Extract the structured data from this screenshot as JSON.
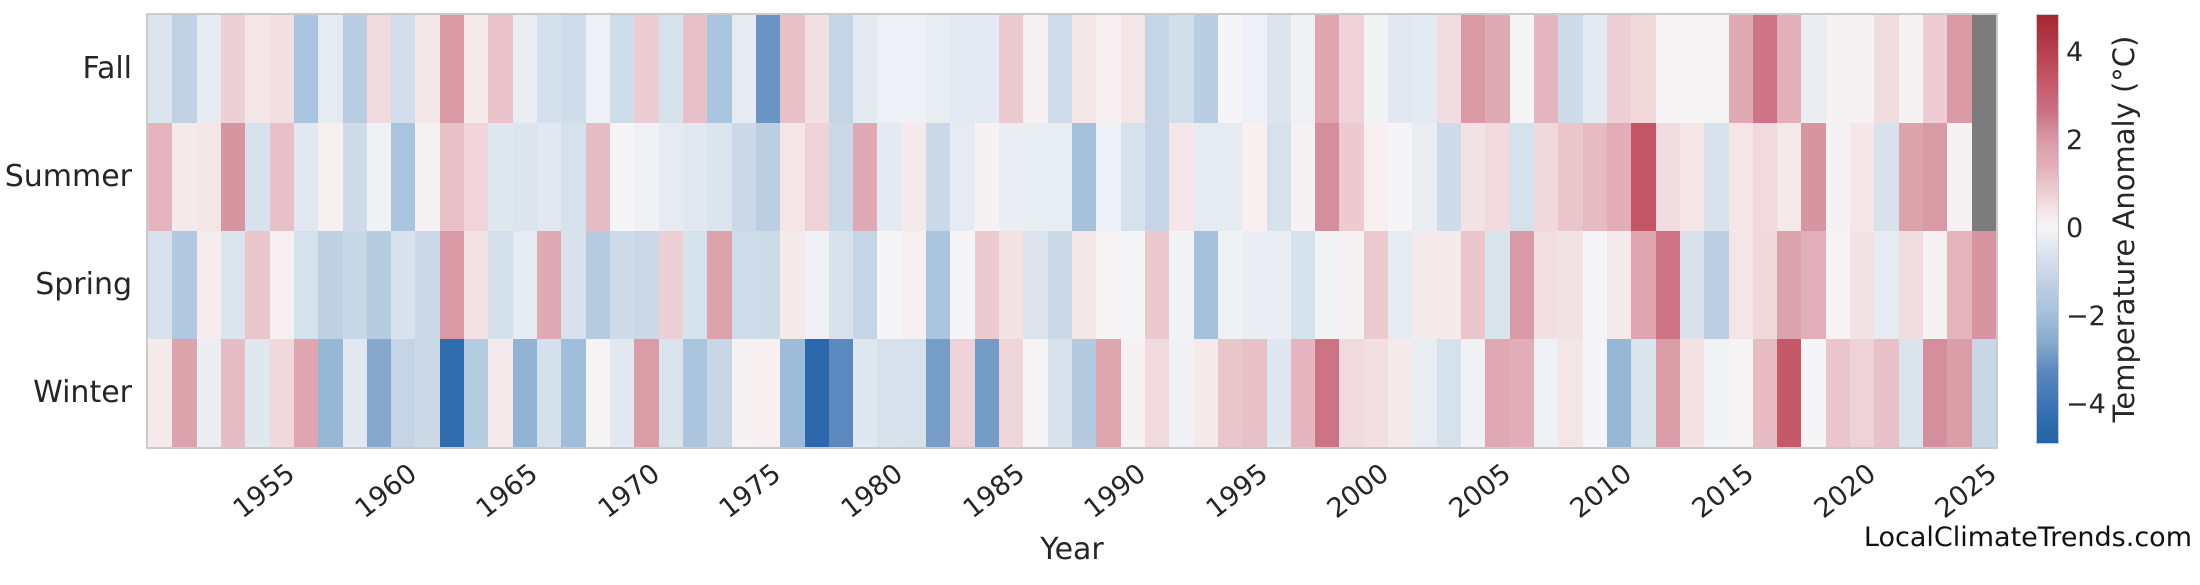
{
  "watermark": {
    "text": "LocalClimateTrends.com"
  },
  "chart_data": {
    "type": "heatmap",
    "title": "",
    "xlabel": "Year",
    "ylabel": "",
    "colorbar_label": "Temperature Anomaly (°C)",
    "colorbar_tick_values": [
      4,
      2,
      0,
      -2,
      -4
    ],
    "colorbar_tick_labels": [
      "4",
      "2",
      "0",
      "−2",
      "−4"
    ],
    "vmin": -4.85,
    "vmax": 4.85,
    "grid": false,
    "legend_position": "right-colorbar",
    "year_start": 1950,
    "year_end": 2025,
    "x_tick_labels": [
      "1955",
      "1960",
      "1965",
      "1970",
      "1975",
      "1980",
      "1985",
      "1990",
      "1995",
      "2000",
      "2005",
      "2010",
      "2015",
      "2020",
      "2025"
    ],
    "x_tick_years": [
      1955,
      1960,
      1965,
      1970,
      1975,
      1980,
      1985,
      1990,
      1995,
      2000,
      2005,
      2010,
      2015,
      2020,
      2025
    ],
    "rows": [
      "Fall",
      "Summer",
      "Spring",
      "Winter"
    ],
    "missing_value_color": "#7c7c7c",
    "colormap_stops": [
      [
        -4.85,
        "#2563a8"
      ],
      [
        -4.3,
        "#2f6daf"
      ],
      [
        -3.2,
        "#5b89bf"
      ],
      [
        -2.6,
        "#84a9cd"
      ],
      [
        -2.2,
        "#97b7d6"
      ],
      [
        -1.8,
        "#a9c4de"
      ],
      [
        -1.3,
        "#bccfe2"
      ],
      [
        -0.95,
        "#ccdae8"
      ],
      [
        -0.6,
        "#d7e2ec"
      ],
      [
        -0.4,
        "#e1e8f0"
      ],
      [
        -0.2,
        "#eaeef3"
      ],
      [
        0,
        "#f5f4f6"
      ],
      [
        0.2,
        "#f7eff0"
      ],
      [
        0.45,
        "#f3e2e4"
      ],
      [
        0.7,
        "#efd5d9"
      ],
      [
        1.0,
        "#eac5cc"
      ],
      [
        1.4,
        "#e3b0ba"
      ],
      [
        1.8,
        "#dda3ad"
      ],
      [
        2.1,
        "#d795a1"
      ],
      [
        2.6,
        "#cc7486"
      ],
      [
        3.4,
        "#c45565"
      ],
      [
        4.2,
        "#b23a49"
      ],
      [
        4.85,
        "#a82634"
      ]
    ],
    "series": [
      {
        "name": "Fall",
        "values": [
          -0.5,
          -1.2,
          -0.3,
          0.8,
          0.4,
          0.5,
          -1.8,
          -0.3,
          -1.4,
          0.6,
          -0.8,
          0.4,
          2.0,
          0.3,
          1.05,
          -0.25,
          -0.7,
          -0.85,
          -0.15,
          -0.85,
          0.85,
          -0.65,
          1.1,
          -1.8,
          -0.3,
          -3.0,
          1.1,
          0.5,
          -1.1,
          -0.35,
          -0.15,
          -0.15,
          -0.25,
          -0.35,
          -0.35,
          0.9,
          0.1,
          -0.85,
          0.4,
          0.15,
          0.4,
          -1.1,
          -0.75,
          -1.4,
          0.0,
          -0.15,
          -0.5,
          -0.1,
          1.7,
          0.75,
          -0.05,
          -0.4,
          -0.35,
          0.55,
          2.0,
          1.6,
          0.0,
          1.3,
          -0.9,
          -0.35,
          0.8,
          0.65,
          0.05,
          0.05,
          0.05,
          1.6,
          2.6,
          1.4,
          -0.2,
          0.1,
          0.1,
          0.55,
          0.1,
          0.85,
          2.0,
          null
        ]
      },
      {
        "name": "Summer",
        "values": [
          1.3,
          0.3,
          0.4,
          2.1,
          -0.6,
          1.1,
          -0.4,
          0.2,
          -0.9,
          -0.1,
          -1.8,
          0.15,
          1.1,
          0.7,
          -0.45,
          -0.5,
          -0.4,
          -0.65,
          1.15,
          0.0,
          -0.1,
          -0.3,
          -0.4,
          -0.5,
          -1.0,
          -1.3,
          0.4,
          0.75,
          -1.0,
          1.6,
          -0.35,
          0.3,
          -1.0,
          -0.3,
          0.1,
          -0.2,
          -0.25,
          -0.25,
          -1.9,
          -0.15,
          -0.65,
          -1.1,
          0.35,
          -0.3,
          -0.3,
          0.2,
          -0.65,
          0.1,
          2.2,
          0.9,
          0.2,
          0.0,
          -0.2,
          -0.9,
          0.45,
          0.6,
          -0.65,
          0.65,
          1.0,
          1.2,
          1.5,
          3.4,
          0.55,
          0.4,
          -0.6,
          0.4,
          0.6,
          0.3,
          2.1,
          0.1,
          0.35,
          -0.6,
          1.8,
          2.0,
          0.1,
          null
        ]
      },
      {
        "name": "Spring",
        "values": [
          -0.6,
          -1.6,
          0.25,
          -0.5,
          1.0,
          0.15,
          -0.65,
          -1.25,
          -1.05,
          -1.45,
          -0.6,
          -1.0,
          2.0,
          0.45,
          -0.7,
          -0.3,
          1.6,
          -0.6,
          -1.5,
          -0.9,
          -1.0,
          0.8,
          -0.65,
          1.8,
          -0.85,
          -0.9,
          0.3,
          -0.1,
          -0.6,
          -1.1,
          0.0,
          0.15,
          -1.75,
          0.0,
          0.9,
          0.45,
          -0.5,
          -0.95,
          0.4,
          0.05,
          0.0,
          0.95,
          -0.05,
          -1.9,
          -0.1,
          -0.2,
          -0.2,
          -0.65,
          -0.05,
          0.1,
          0.9,
          -0.3,
          0.3,
          0.3,
          1.0,
          -0.55,
          2.0,
          0.5,
          0.45,
          0.0,
          0.3,
          1.7,
          2.6,
          -0.6,
          -1.3,
          0.4,
          0.65,
          1.8,
          1.45,
          0.05,
          0.45,
          -0.3,
          0.55,
          0.1,
          1.35,
          2.1
        ]
      },
      {
        "name": "Winter",
        "values": [
          0.3,
          1.8,
          -0.2,
          1.15,
          -0.45,
          0.65,
          1.7,
          -2.2,
          -0.4,
          -2.6,
          -1.1,
          -0.95,
          -4.3,
          -1.45,
          0.3,
          -2.3,
          -0.7,
          -2.0,
          0.05,
          -0.4,
          1.95,
          -0.55,
          -1.75,
          -1.05,
          0.1,
          0.2,
          -2.05,
          -4.5,
          -3.2,
          -0.45,
          -0.6,
          -0.65,
          -2.8,
          0.75,
          -2.85,
          0.7,
          0.05,
          -0.6,
          -1.55,
          1.7,
          0.1,
          0.6,
          -0.1,
          0.3,
          1.0,
          1.1,
          -0.45,
          1.3,
          2.6,
          0.6,
          0.5,
          0.3,
          -0.25,
          -0.65,
          -0.1,
          1.65,
          1.5,
          -0.15,
          0.4,
          0.0,
          -2.2,
          -0.55,
          1.9,
          0.45,
          -0.05,
          0.05,
          1.2,
          3.3,
          0.0,
          1.0,
          0.75,
          1.1,
          -0.55,
          2.2,
          1.9,
          -1.05
        ]
      }
    ]
  }
}
